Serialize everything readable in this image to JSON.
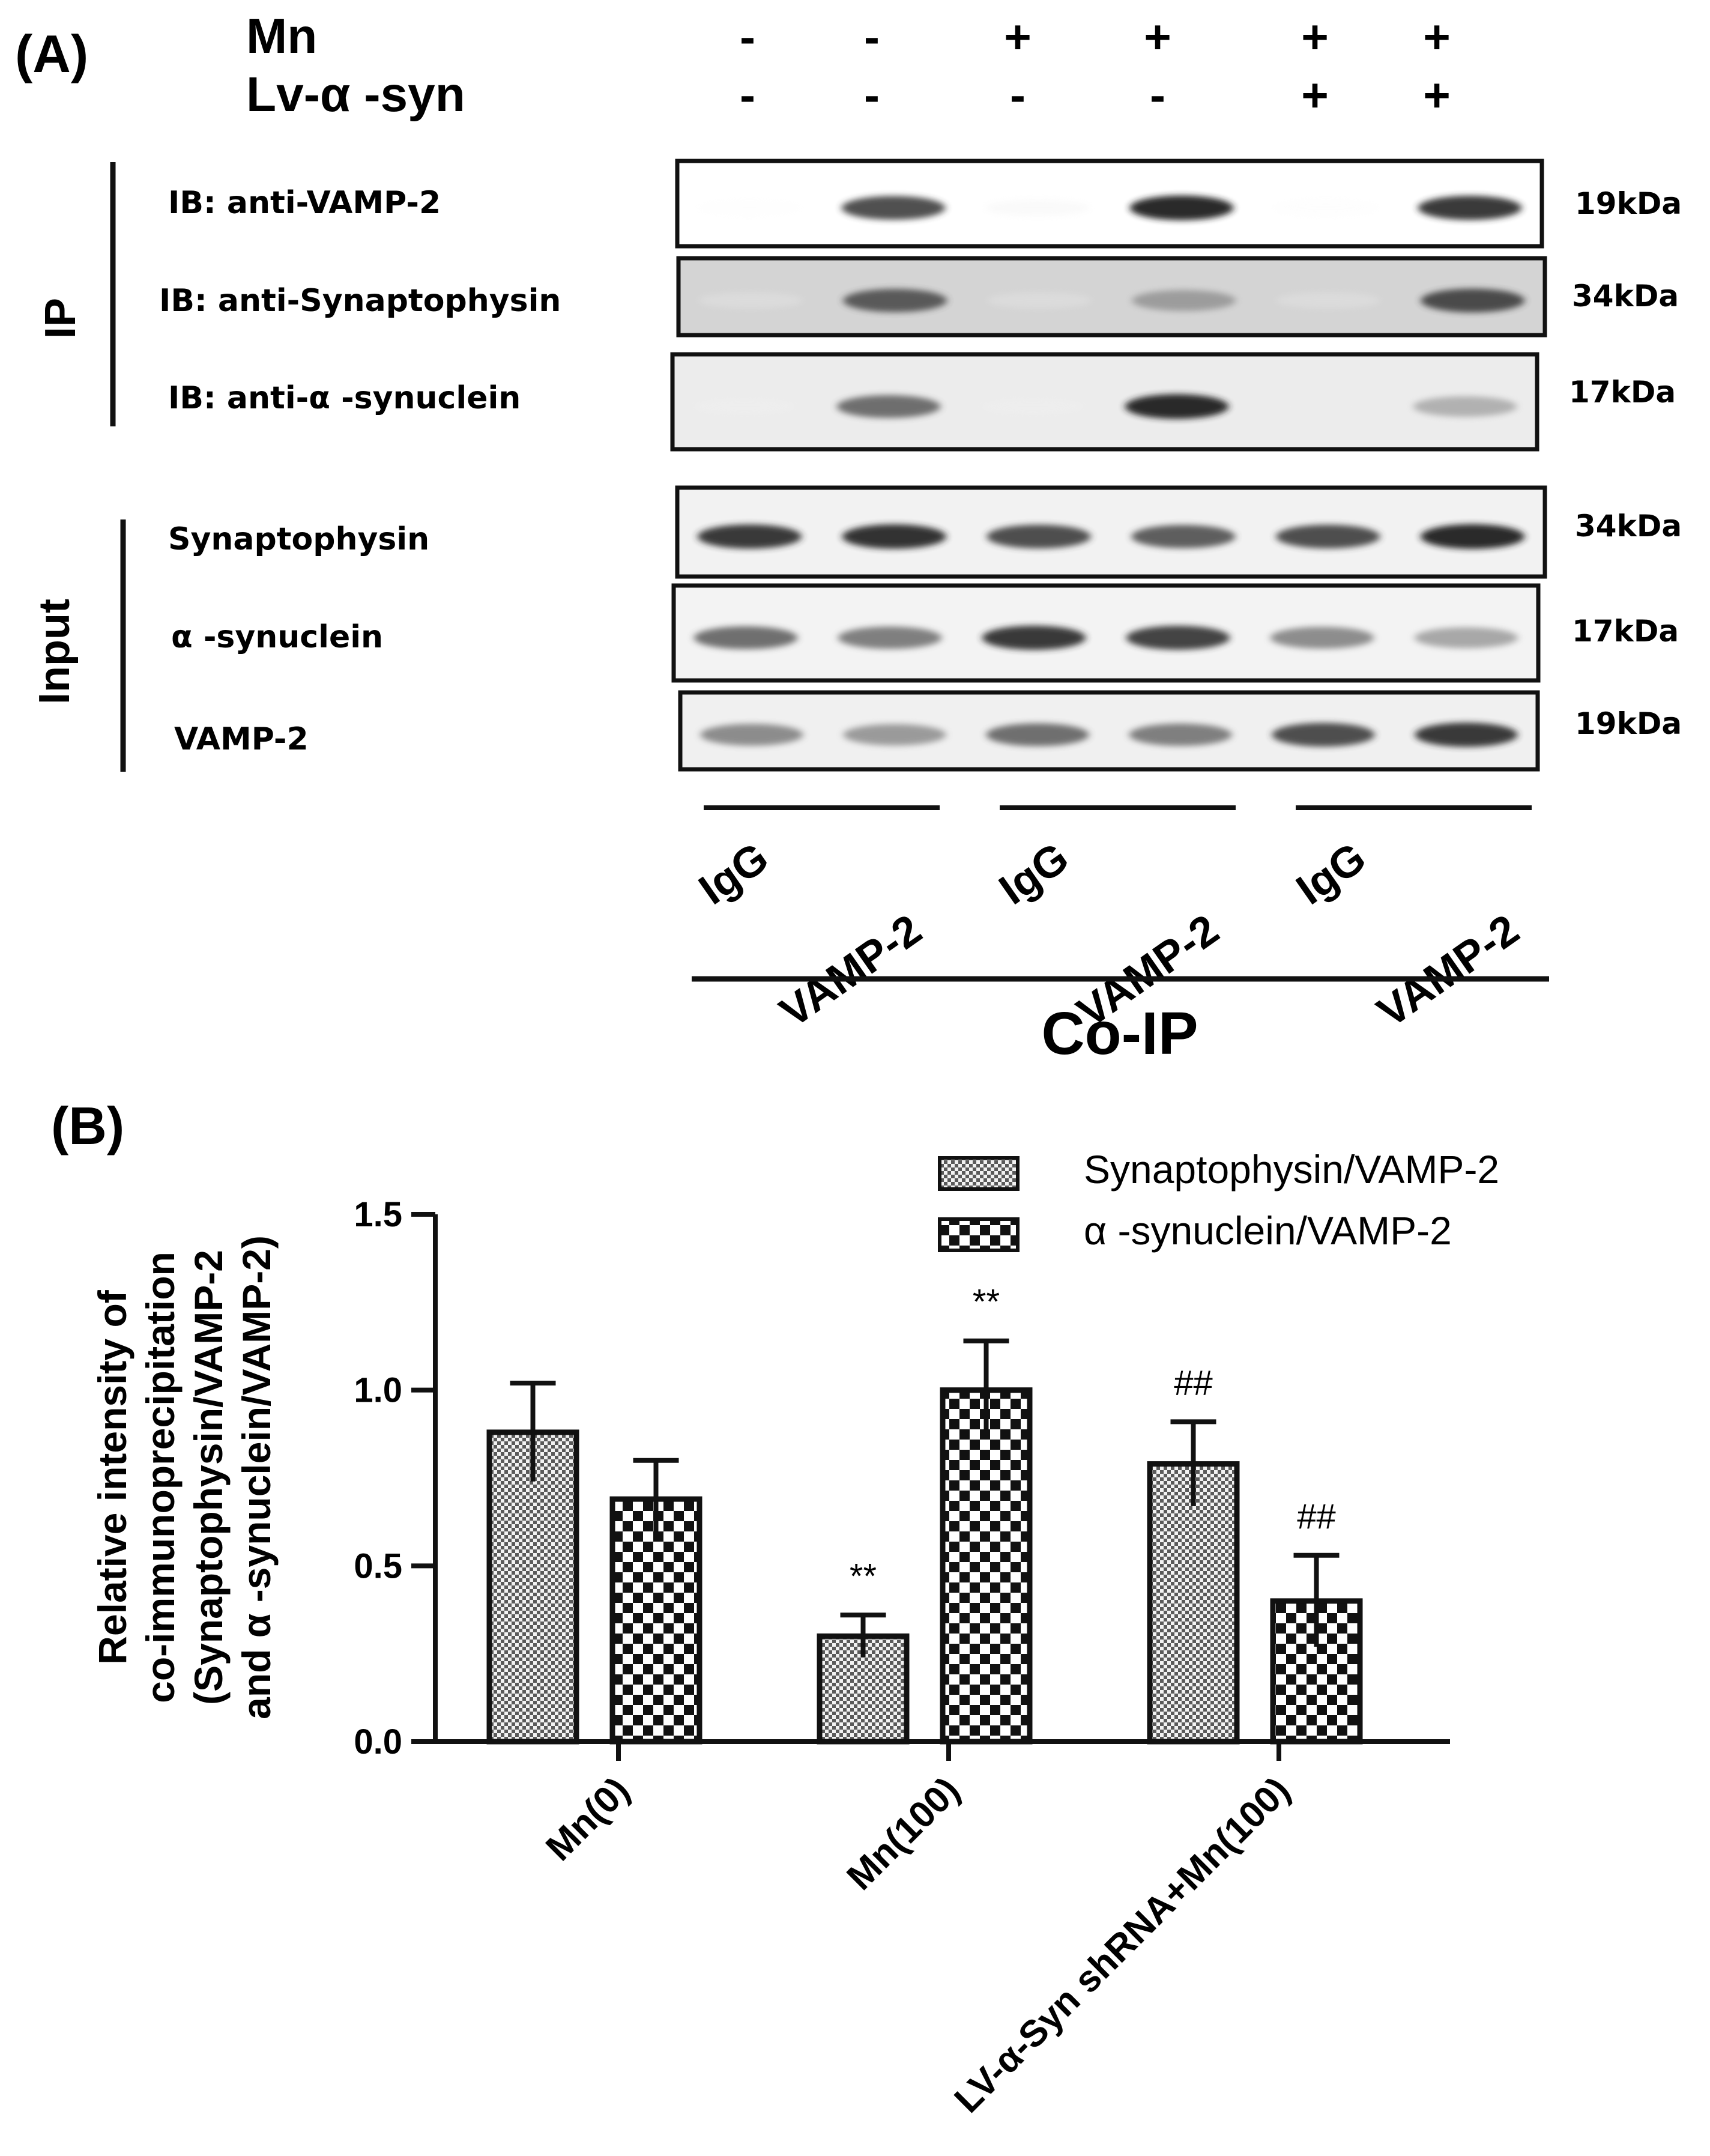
{
  "panel_a": {
    "label": "(A)",
    "treatments": [
      {
        "name": "Mn",
        "signs": [
          "-",
          "-",
          "+",
          "+",
          "+",
          "+"
        ]
      },
      {
        "name": "Lv-α -syn",
        "signs": [
          "-",
          "-",
          "-",
          "-",
          "+",
          "+"
        ]
      }
    ],
    "ip_group_label": "IP",
    "input_group_label": "Input",
    "ip_rows": [
      {
        "label": "IB: anti-VAMP-2",
        "kda": "19kDa",
        "bands": [
          0.02,
          0.85,
          0.08,
          0.95,
          0.03,
          0.9
        ]
      },
      {
        "label": "IB: anti-Synaptophysin",
        "kda": "34kDa",
        "bands": [
          0.05,
          0.8,
          0.05,
          0.55,
          0.05,
          0.85
        ]
      },
      {
        "label": "IB: anti-α -synuclein",
        "kda": "17kDa",
        "bands": [
          0.05,
          0.75,
          0.05,
          0.95,
          0.08,
          0.5
        ]
      }
    ],
    "input_rows": [
      {
        "label": "Synaptophysin",
        "kda": "34kDa",
        "bands": [
          0.9,
          0.92,
          0.85,
          0.8,
          0.85,
          0.95
        ]
      },
      {
        "label": "α -synuclein",
        "kda": "17kDa",
        "bands": [
          0.75,
          0.7,
          0.9,
          0.88,
          0.65,
          0.55
        ]
      },
      {
        "label": "VAMP-2",
        "kda": "19kDa",
        "bands": [
          0.65,
          0.6,
          0.75,
          0.7,
          0.85,
          0.9
        ]
      }
    ],
    "lane_labels": [
      "IgG",
      "VAMP-2",
      "IgG",
      "VAMP-2",
      "IgG",
      "VAMP-2"
    ],
    "coip_label": "Co-IP"
  },
  "panel_b": {
    "label": "(B)"
  },
  "chart_data": {
    "type": "bar",
    "title": "",
    "xlabel": "",
    "ylabel_lines": [
      "Relative intensity of",
      "co-immunoprecipitation",
      "(Synaptophysin/VAMP-2",
      "and α -synuclein/VAMP-2)"
    ],
    "ylim": [
      0.0,
      1.5
    ],
    "yticks": [
      "0.0",
      "0.5",
      "1.0",
      "1.5"
    ],
    "ytick_values": [
      0.0,
      0.5,
      1.0,
      1.5
    ],
    "categories": [
      "Mn(0)",
      "Mn(100)",
      "LV-α-Syn shRNA+Mn(100)"
    ],
    "series": [
      {
        "name": "Synaptophysin/VAMP-2",
        "values": [
          0.88,
          0.3,
          0.79
        ],
        "errors": [
          0.14,
          0.06,
          0.12
        ],
        "annotations": [
          "",
          "**",
          "##"
        ]
      },
      {
        "name": "α -synuclein/VAMP-2",
        "values": [
          0.69,
          1.0,
          0.4
        ],
        "errors": [
          0.11,
          0.14,
          0.13
        ],
        "annotations": [
          "",
          "**",
          "##"
        ]
      }
    ],
    "legend_position": "top-right",
    "grid": false
  }
}
